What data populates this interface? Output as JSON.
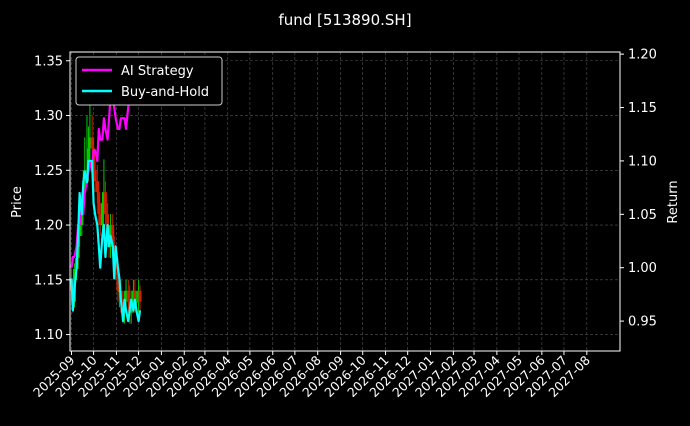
{
  "chart_data": {
    "type": "line",
    "title": "fund [513890.SH]",
    "ylabel": "Price",
    "y2label": "Return",
    "ylim": [
      1.085,
      1.358
    ],
    "y2lim": [
      0.922,
      1.202
    ],
    "yticks": [
      1.1,
      1.15,
      1.2,
      1.25,
      1.3,
      1.35
    ],
    "y2ticks": [
      0.95,
      1.0,
      1.05,
      1.1,
      1.15,
      1.2
    ],
    "xlim": [
      "2025-08-30",
      "2027-09-15"
    ],
    "xticks": [
      "2025-09",
      "2025-10",
      "2025-11",
      "2025-12",
      "2026-01",
      "2026-02",
      "2026-03",
      "2026-04",
      "2026-05",
      "2026-06",
      "2026-07",
      "2026-08",
      "2026-09",
      "2026-10",
      "2026-11",
      "2026-12",
      "2027-01",
      "2027-02",
      "2027-03",
      "2027-04",
      "2027-05",
      "2027-06",
      "2027-07",
      "2027-08"
    ],
    "grid": true,
    "legend_position": "top-left",
    "colors": {
      "ai": "#ff00ff",
      "bh": "#00ffff",
      "up": "#00cc00",
      "down": "#cc2200",
      "background": "#000000",
      "axes": "#ffffff",
      "grid": "#555555"
    },
    "series": [
      {
        "name": "AI Strategy",
        "axis": "return",
        "x": [
          "2025-09-01",
          "2025-09-03",
          "2025-09-05",
          "2025-09-08",
          "2025-09-10",
          "2025-09-12",
          "2025-09-15",
          "2025-09-17",
          "2025-09-19",
          "2025-09-22",
          "2025-09-24",
          "2025-09-26",
          "2025-09-29",
          "2025-10-01",
          "2025-10-03",
          "2025-10-06",
          "2025-10-08",
          "2025-10-10",
          "2025-10-13",
          "2025-10-15",
          "2025-10-17",
          "2025-10-20",
          "2025-10-22",
          "2025-10-24",
          "2025-10-27",
          "2025-10-29",
          "2025-10-31",
          "2025-11-03",
          "2025-11-05",
          "2025-11-07",
          "2025-11-10",
          "2025-11-12",
          "2025-11-14",
          "2025-11-17",
          "2025-11-19",
          "2025-11-21",
          "2025-11-24",
          "2025-11-26",
          "2025-11-28",
          "2025-12-01",
          "2025-12-03"
        ],
        "values": [
          1.0,
          1.01,
          1.01,
          1.02,
          1.04,
          1.04,
          1.06,
          1.05,
          1.07,
          1.08,
          1.09,
          1.1,
          1.09,
          1.11,
          1.11,
          1.1,
          1.13,
          1.12,
          1.12,
          1.14,
          1.13,
          1.12,
          1.14,
          1.16,
          1.17,
          1.15,
          1.14,
          1.13,
          1.13,
          1.14,
          1.14,
          1.14,
          1.13,
          1.15,
          1.16,
          1.17,
          1.18,
          1.19,
          1.18,
          1.17,
          1.19
        ]
      },
      {
        "name": "Buy-and-Hold",
        "axis": "return",
        "x": [
          "2025-09-01",
          "2025-09-03",
          "2025-09-05",
          "2025-09-08",
          "2025-09-10",
          "2025-09-12",
          "2025-09-15",
          "2025-09-17",
          "2025-09-19",
          "2025-09-22",
          "2025-09-24",
          "2025-09-26",
          "2025-09-29",
          "2025-10-01",
          "2025-10-03",
          "2025-10-06",
          "2025-10-08",
          "2025-10-10",
          "2025-10-13",
          "2025-10-15",
          "2025-10-17",
          "2025-10-20",
          "2025-10-22",
          "2025-10-24",
          "2025-10-27",
          "2025-10-29",
          "2025-10-31",
          "2025-11-03",
          "2025-11-05",
          "2025-11-07",
          "2025-11-10",
          "2025-11-12",
          "2025-11-14",
          "2025-11-17",
          "2025-11-19",
          "2025-11-21",
          "2025-11-24",
          "2025-11-26",
          "2025-11-28",
          "2025-12-01",
          "2025-12-03"
        ],
        "values": [
          0.99,
          0.96,
          0.98,
          1.0,
          1.03,
          1.07,
          1.05,
          1.08,
          1.09,
          1.08,
          1.1,
          1.1,
          1.1,
          1.06,
          1.05,
          1.04,
          1.02,
          1.0,
          1.03,
          1.04,
          1.01,
          1.04,
          1.02,
          1.03,
          1.02,
          0.99,
          1.02,
          1.0,
          0.99,
          0.97,
          0.95,
          0.97,
          0.96,
          0.95,
          0.96,
          0.97,
          0.96,
          0.97,
          0.96,
          0.95,
          0.96
        ]
      }
    ],
    "candles": {
      "axis": "price",
      "x": [
        "2025-09-01",
        "2025-09-03",
        "2025-09-05",
        "2025-09-08",
        "2025-09-10",
        "2025-09-12",
        "2025-09-15",
        "2025-09-17",
        "2025-09-19",
        "2025-09-22",
        "2025-09-24",
        "2025-09-26",
        "2025-09-29",
        "2025-10-01",
        "2025-10-03",
        "2025-10-06",
        "2025-10-08",
        "2025-10-10",
        "2025-10-13",
        "2025-10-15",
        "2025-10-17",
        "2025-10-20",
        "2025-10-22",
        "2025-10-24",
        "2025-10-27",
        "2025-10-29",
        "2025-10-31",
        "2025-11-03",
        "2025-11-05",
        "2025-11-07",
        "2025-11-10",
        "2025-11-12",
        "2025-11-14",
        "2025-11-17",
        "2025-11-19",
        "2025-11-21",
        "2025-11-24",
        "2025-11-26",
        "2025-11-28",
        "2025-12-01",
        "2025-12-03"
      ],
      "open": [
        1.15,
        1.14,
        1.13,
        1.16,
        1.17,
        1.19,
        1.2,
        1.22,
        1.23,
        1.25,
        1.25,
        1.27,
        1.28,
        1.27,
        1.25,
        1.24,
        1.23,
        1.21,
        1.2,
        1.22,
        1.23,
        1.21,
        1.19,
        1.18,
        1.2,
        1.18,
        1.17,
        1.16,
        1.14,
        1.14,
        1.13,
        1.12,
        1.13,
        1.14,
        1.13,
        1.12,
        1.13,
        1.14,
        1.13,
        1.13,
        1.14
      ],
      "close": [
        1.14,
        1.13,
        1.16,
        1.17,
        1.19,
        1.2,
        1.22,
        1.23,
        1.25,
        1.25,
        1.27,
        1.28,
        1.27,
        1.25,
        1.24,
        1.23,
        1.21,
        1.2,
        1.22,
        1.23,
        1.21,
        1.19,
        1.18,
        1.2,
        1.18,
        1.17,
        1.16,
        1.14,
        1.14,
        1.13,
        1.12,
        1.13,
        1.14,
        1.13,
        1.12,
        1.13,
        1.14,
        1.13,
        1.13,
        1.14,
        1.13
      ],
      "high": [
        1.16,
        1.15,
        1.165,
        1.18,
        1.2,
        1.21,
        1.23,
        1.25,
        1.28,
        1.3,
        1.29,
        1.31,
        1.3,
        1.28,
        1.26,
        1.255,
        1.24,
        1.22,
        1.23,
        1.26,
        1.24,
        1.22,
        1.2,
        1.21,
        1.21,
        1.19,
        1.18,
        1.17,
        1.15,
        1.15,
        1.14,
        1.14,
        1.15,
        1.15,
        1.145,
        1.14,
        1.15,
        1.15,
        1.14,
        1.15,
        1.145
      ],
      "low": [
        1.13,
        1.12,
        1.125,
        1.15,
        1.16,
        1.18,
        1.19,
        1.21,
        1.22,
        1.24,
        1.24,
        1.26,
        1.26,
        1.24,
        1.23,
        1.22,
        1.2,
        1.19,
        1.19,
        1.21,
        1.2,
        1.18,
        1.17,
        1.17,
        1.17,
        1.16,
        1.15,
        1.13,
        1.125,
        1.12,
        1.11,
        1.11,
        1.12,
        1.12,
        1.11,
        1.11,
        1.12,
        1.12,
        1.12,
        1.12,
        1.12
      ]
    }
  }
}
